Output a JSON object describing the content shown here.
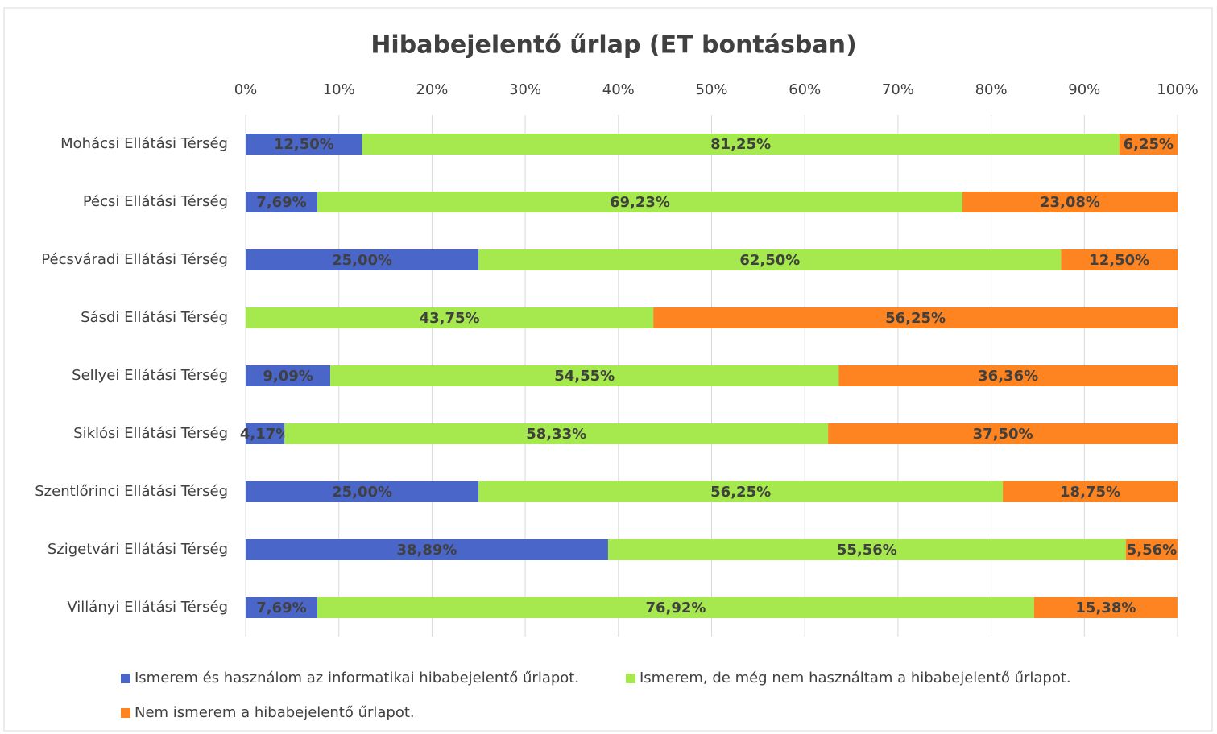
{
  "chart_data": {
    "type": "stacked_bar_horizontal",
    "title": "Hibabejelentő űrlap (ET bontásban)",
    "categories": [
      "Mohácsi Ellátási Térség",
      "Pécsi Ellátási Térség",
      "Pécsváradi Ellátási Térség",
      "Sásdi Ellátási Térség",
      "Sellyei Ellátási Térség",
      "Siklósi Ellátási Térség",
      "Szentlőrinci Ellátási Térség",
      "Szigetvári Ellátási Térség",
      "Villányi Ellátási Térség"
    ],
    "series": [
      {
        "name": "Ismerem és használom az informatikai hibabejelentő űrlapot.",
        "color": "#4a66c9",
        "values": [
          12.5,
          7.69,
          25,
          0,
          9.09,
          4.17,
          25,
          38.89,
          7.69
        ],
        "value_labels": [
          "12,50%",
          "7,69%",
          "25,00%",
          null,
          "9,09%",
          "4,17%",
          "25,00%",
          "38,89%",
          "7,69%"
        ]
      },
      {
        "name": "Ismerem, de még nem használtam a hibabejelentő űrlapot.",
        "color": "#a6e94e",
        "values": [
          81.25,
          69.23,
          62.5,
          43.75,
          54.55,
          58.33,
          56.25,
          55.56,
          76.92
        ],
        "value_labels": [
          "81,25%",
          "69,23%",
          "62,50%",
          "43,75%",
          "54,55%",
          "58,33%",
          "56,25%",
          "55,56%",
          "76,92%"
        ]
      },
      {
        "name": "Nem ismerem a hibabejelentő űrlapot.",
        "color": "#fd8420",
        "values": [
          6.25,
          23.08,
          12.5,
          56.25,
          36.36,
          37.5,
          18.75,
          5.56,
          15.38
        ],
        "value_labels": [
          "6,25%",
          "23,08%",
          "12,50%",
          "56,25%",
          "36,36%",
          "37,50%",
          "18,75%",
          "5,56%",
          "15,38%"
        ]
      }
    ],
    "xlim": [
      0,
      100
    ],
    "xticks": [
      {
        "value": 0,
        "label": "0%"
      },
      {
        "value": 10,
        "label": "10%"
      },
      {
        "value": 20,
        "label": "20%"
      },
      {
        "value": 30,
        "label": "30%"
      },
      {
        "value": 40,
        "label": "40%"
      },
      {
        "value": 50,
        "label": "50%"
      },
      {
        "value": 60,
        "label": "60%"
      },
      {
        "value": 70,
        "label": "70%"
      },
      {
        "value": 80,
        "label": "80%"
      },
      {
        "value": 90,
        "label": "90%"
      },
      {
        "value": 100,
        "label": "100%"
      }
    ],
    "grid": true
  }
}
